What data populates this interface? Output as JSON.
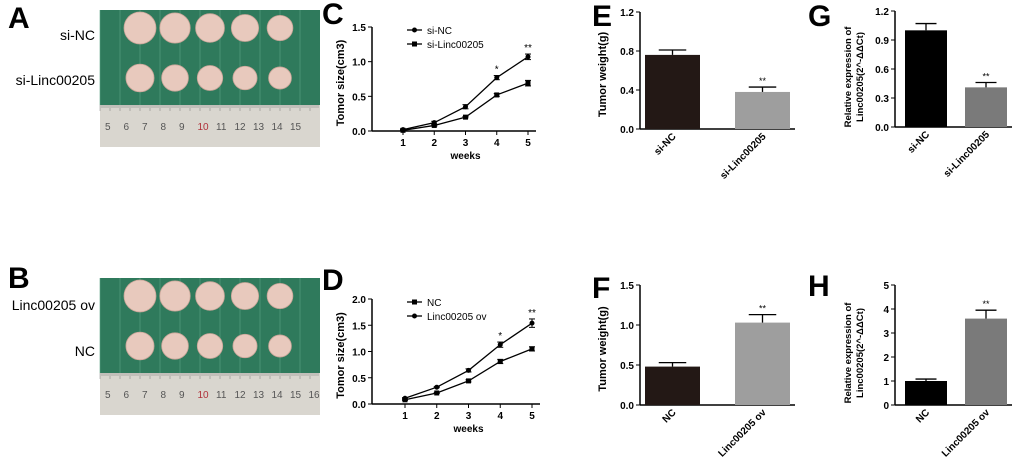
{
  "panels": {
    "A": {
      "letter": "A",
      "labels": [
        "si-NC",
        "si-Linc00205"
      ],
      "ruler": [
        "5",
        "6",
        "7",
        "8",
        "9",
        "10",
        "11",
        "12",
        "13",
        "14",
        "15"
      ]
    },
    "B": {
      "letter": "B",
      "labels": [
        "Linc00205 ov",
        "NC"
      ],
      "ruler": [
        "5",
        "6",
        "7",
        "8",
        "9",
        "10",
        "11",
        "12",
        "13",
        "14",
        "15",
        "16"
      ]
    }
  },
  "colors": {
    "photo_bg": "#2f7a5c",
    "tumor": "#e8c9bd",
    "ruler": "#d9d6cf",
    "bar_dark": "#231815",
    "bar_gray": "#9e9e9e",
    "bar_black": "#000000",
    "bar_mid": "#7a7a7a"
  },
  "chart_data": [
    {
      "id": "C",
      "letter": "C",
      "type": "line",
      "xlabel": "weeks",
      "ylabel": "Tomor size(cm3)",
      "x": [
        1,
        2,
        3,
        4,
        5
      ],
      "ylim": [
        0,
        1.5
      ],
      "yticks": [
        "0.0",
        "0.5",
        "1.0",
        "1.5"
      ],
      "legend": "top-left",
      "series": [
        {
          "name": "si-NC",
          "values": [
            0.02,
            0.12,
            0.35,
            0.77,
            1.07
          ],
          "err": [
            0.01,
            0.02,
            0.03,
            0.03,
            0.04
          ],
          "marker": "circle"
        },
        {
          "name": "si-Linc00205",
          "values": [
            0.01,
            0.08,
            0.2,
            0.52,
            0.69
          ],
          "err": [
            0.01,
            0.01,
            0.01,
            0.02,
            0.04
          ],
          "marker": "square"
        }
      ],
      "annotations": [
        {
          "x": 4,
          "text": "*"
        },
        {
          "x": 5,
          "text": "**"
        }
      ]
    },
    {
      "id": "D",
      "letter": "D",
      "type": "line",
      "xlabel": "weeks",
      "ylabel": "Tomor size(cm3)",
      "x": [
        1,
        2,
        3,
        4,
        5
      ],
      "ylim": [
        0,
        2.0
      ],
      "yticks": [
        "0.0",
        "0.5",
        "1.0",
        "1.5",
        "2.0"
      ],
      "legend": "top-left",
      "series": [
        {
          "name": "NC",
          "values": [
            0.08,
            0.21,
            0.44,
            0.81,
            1.05
          ],
          "err": [
            0.01,
            0.01,
            0.02,
            0.04,
            0.04
          ],
          "marker": "square"
        },
        {
          "name": "Linc00205 ov",
          "values": [
            0.11,
            0.32,
            0.64,
            1.13,
            1.54
          ],
          "err": [
            0.01,
            0.01,
            0.03,
            0.05,
            0.08
          ],
          "marker": "circle"
        }
      ],
      "annotations": [
        {
          "x": 4,
          "text": "*"
        },
        {
          "x": 5,
          "text": "**"
        }
      ]
    },
    {
      "id": "E",
      "letter": "E",
      "type": "bar",
      "ylabel": "Tumor weight(g)",
      "categories": [
        "si-NC",
        "si-Linc00205"
      ],
      "values": [
        0.76,
        0.38
      ],
      "err": [
        0.05,
        0.05
      ],
      "ylim": [
        0,
        1.2
      ],
      "yticks": [
        "0.0",
        "0.4",
        "0.8",
        "1.2"
      ],
      "annotations": [
        "",
        "**"
      ],
      "colors": [
        "#231815",
        "#9e9e9e"
      ]
    },
    {
      "id": "F",
      "letter": "F",
      "type": "bar",
      "ylabel": "Tumor weight(g)",
      "categories": [
        "NC",
        "Linc00205 ov"
      ],
      "values": [
        0.48,
        1.03
      ],
      "err": [
        0.05,
        0.1
      ],
      "ylim": [
        0,
        1.5
      ],
      "yticks": [
        "0.0",
        "0.5",
        "1.0",
        "1.5"
      ],
      "annotations": [
        "",
        "**"
      ],
      "colors": [
        "#231815",
        "#9e9e9e"
      ]
    },
    {
      "id": "G",
      "letter": "G",
      "type": "bar",
      "ylabel": "Relative expression of",
      "ylabel2": "Linc00205(2^-ΔΔCt)",
      "categories": [
        "si-NC",
        "si-Linc00205"
      ],
      "values": [
        1.0,
        0.41
      ],
      "err": [
        0.07,
        0.05
      ],
      "ylim": [
        0,
        1.2
      ],
      "yticks": [
        "0.0",
        "0.3",
        "0.6",
        "0.9",
        "1.2"
      ],
      "annotations": [
        "",
        "**"
      ],
      "colors": [
        "#000000",
        "#7a7a7a"
      ]
    },
    {
      "id": "H",
      "letter": "H",
      "type": "bar",
      "ylabel": "Relative expression of",
      "ylabel2": "Linc00205(2^-ΔΔCt)",
      "categories": [
        "NC",
        "Linc00205 ov"
      ],
      "values": [
        1.0,
        3.6
      ],
      "err": [
        0.08,
        0.35
      ],
      "ylim": [
        0,
        5
      ],
      "yticks": [
        "0",
        "1",
        "2",
        "3",
        "4",
        "5"
      ],
      "annotations": [
        "",
        "**"
      ],
      "colors": [
        "#000000",
        "#7a7a7a"
      ]
    }
  ]
}
